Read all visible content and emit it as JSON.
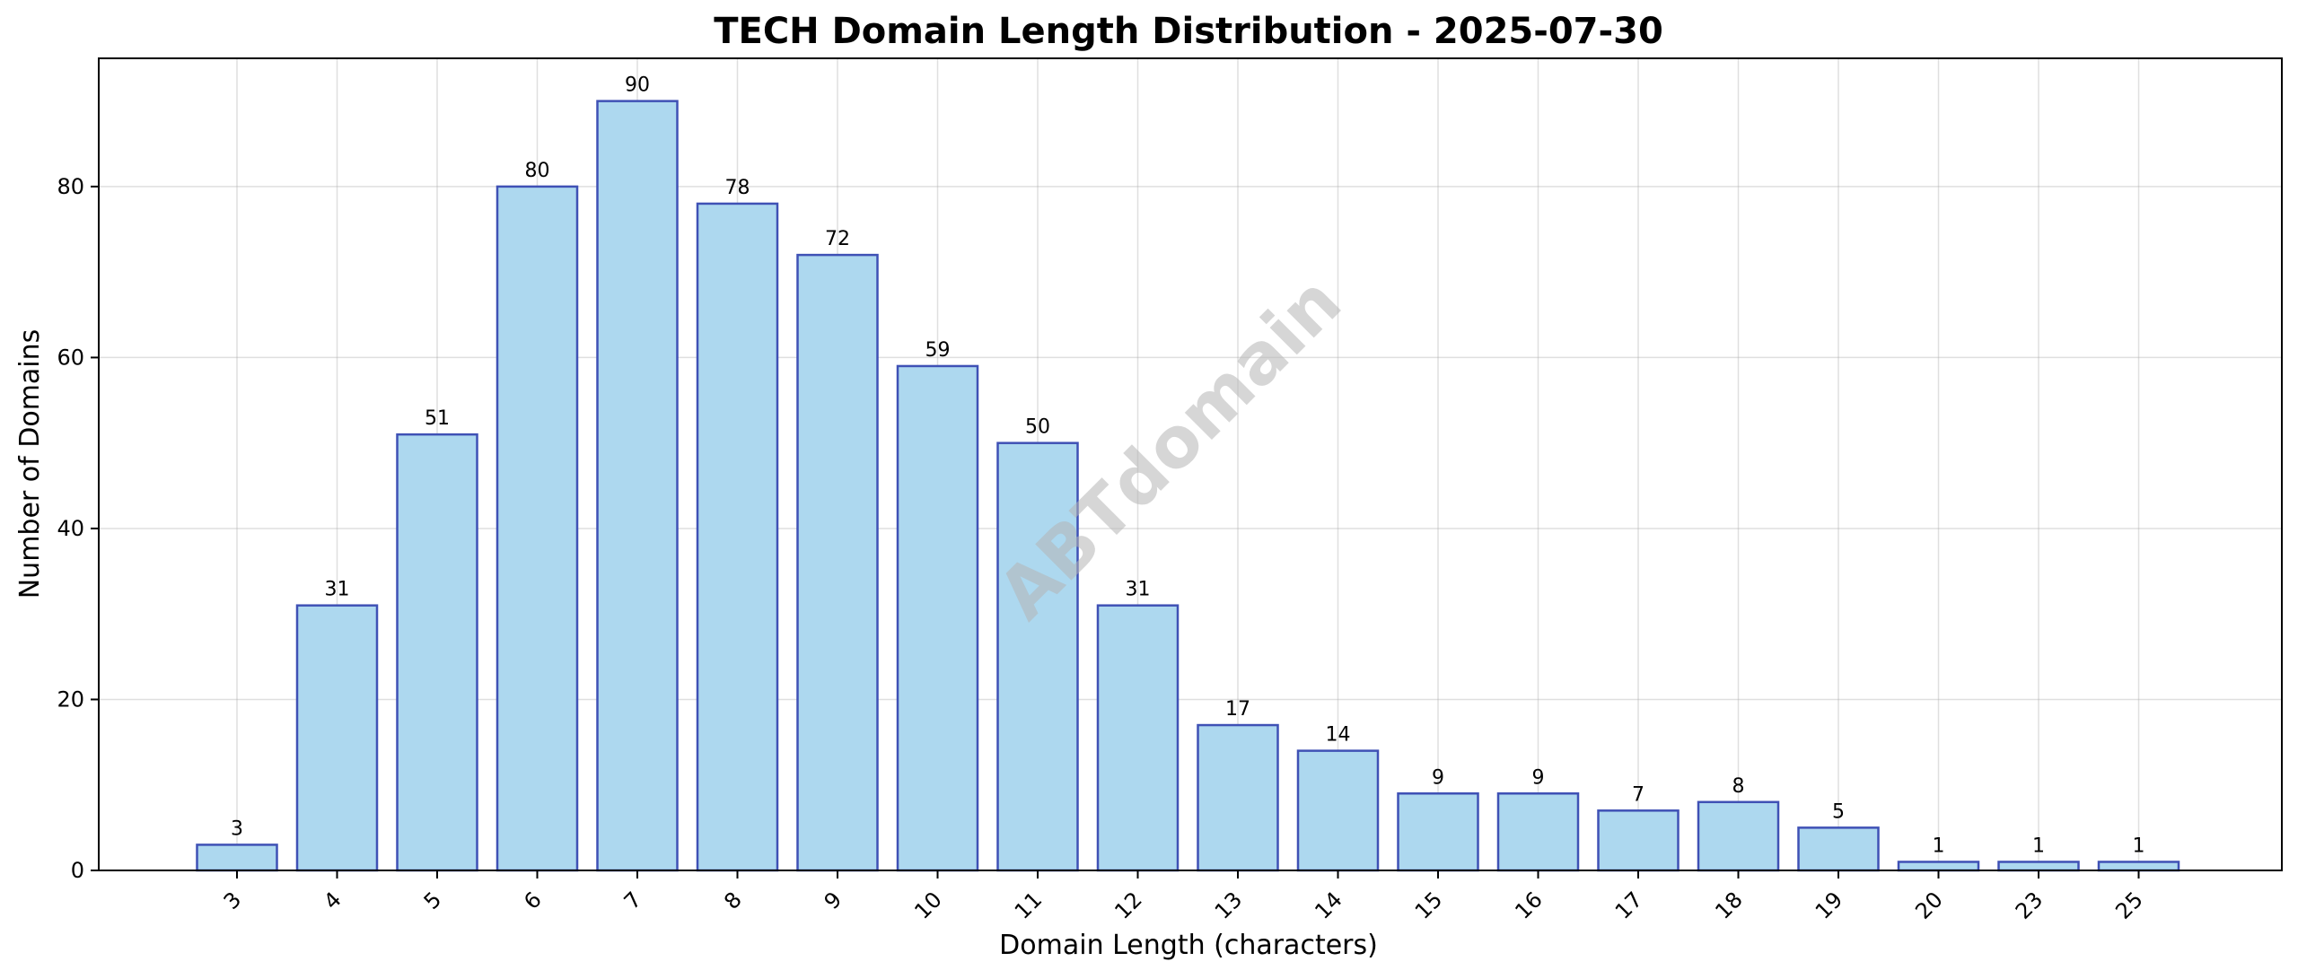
{
  "chart_data": {
    "type": "bar",
    "title": "TECH Domain Length Distribution - 2025-07-30",
    "xlabel": "Domain Length (characters)",
    "ylabel": "Number of Domains",
    "categories": [
      "3",
      "4",
      "5",
      "6",
      "7",
      "8",
      "9",
      "10",
      "11",
      "12",
      "13",
      "14",
      "15",
      "16",
      "17",
      "18",
      "19",
      "20",
      "23",
      "25"
    ],
    "values": [
      3,
      31,
      51,
      80,
      90,
      78,
      72,
      59,
      50,
      31,
      17,
      14,
      9,
      9,
      7,
      8,
      5,
      1,
      1,
      1
    ],
    "ylim": [
      0,
      95
    ],
    "yticks": [
      0,
      20,
      40,
      60,
      80
    ],
    "grid": true,
    "legend": "none",
    "bar_fill_color": "#add8ef",
    "bar_edge_color": "#3f51b5",
    "watermark": "ABTdomain"
  }
}
